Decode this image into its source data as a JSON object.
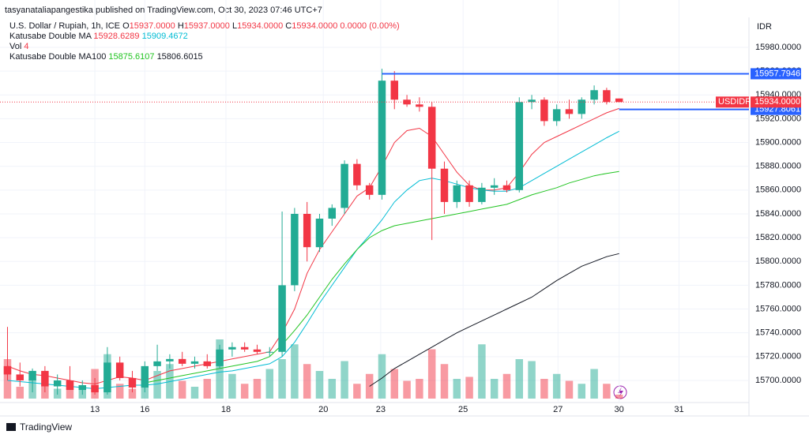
{
  "header": {
    "author_line": "tasyanataliapangestika published on TradingView.com, Oct 30, 2023 07:46 UTC+7",
    "symbol": "U.S. Dollar / Rupiah, 1h, ICE",
    "ohlc": [
      {
        "k": "O",
        "v": "15937.0000"
      },
      {
        "k": "H",
        "v": "15937.0000"
      },
      {
        "k": "L",
        "v": "15934.0000"
      },
      {
        "k": "C",
        "v": "15934.0000"
      }
    ],
    "change": "0.0000 (0.00%)",
    "indicators": [
      {
        "name": "Katusabe Double MA",
        "values": [
          "15928.6289",
          "15909.4672"
        ],
        "colors": [
          "#f23645",
          "#00bcd4"
        ]
      },
      {
        "name": "Vol",
        "values": [
          "4"
        ],
        "colors": [
          "#f23645"
        ]
      },
      {
        "name": "Katusabe Double MA100",
        "values": [
          "15875.6107",
          "15806.6015"
        ],
        "colors": [
          "#22c422",
          "#131722"
        ]
      }
    ]
  },
  "chart_data": {
    "type": "candlestick",
    "currency": "IDR",
    "symbol_tag": "USDIDR",
    "footer": "TradingView",
    "xlim": [
      -0.6,
      59.4
    ],
    "ylim": [
      15681.4,
      16019.8
    ],
    "vlim": [
      0,
      100
    ],
    "xticks": [
      {
        "value": 7,
        "label": "13"
      },
      {
        "value": 11,
        "label": "16"
      },
      {
        "value": 17.5,
        "label": "18"
      },
      {
        "value": 25.3,
        "label": "20"
      },
      {
        "value": 29.9,
        "label": "23"
      },
      {
        "value": 36.5,
        "label": "25"
      },
      {
        "value": 44.1,
        "label": "27"
      },
      {
        "value": 49,
        "label": "30"
      },
      {
        "value": 53.8,
        "label": "31"
      }
    ],
    "yticks": [
      {
        "value": 15700,
        "label": "15700.0000"
      },
      {
        "value": 15720,
        "label": "15720.0000"
      },
      {
        "value": 15740,
        "label": "15740.0000"
      },
      {
        "value": 15760,
        "label": "15760.0000"
      },
      {
        "value": 15780,
        "label": "15780.0000"
      },
      {
        "value": 15800,
        "label": "15800.0000"
      },
      {
        "value": 15820,
        "label": "15820.0000"
      },
      {
        "value": 15840,
        "label": "15840.0000"
      },
      {
        "value": 15860,
        "label": "15860.0000"
      },
      {
        "value": 15880,
        "label": "15880.0000"
      },
      {
        "value": 15900,
        "label": "15900.0000"
      },
      {
        "value": 15920,
        "label": "15920.0000"
      },
      {
        "value": 15940,
        "label": "15940.0000"
      },
      {
        "value": 15960,
        "label": "15960.0000"
      },
      {
        "value": 15980,
        "label": "15980.0000"
      }
    ],
    "up_color": "#22ab94",
    "down_color": "#f23645",
    "open": [
      15712,
      15705,
      15700,
      15708,
      15695,
      15700,
      15692,
      15696,
      15690,
      15715,
      15702,
      15694,
      15712,
      15716,
      15718,
      15714,
      15716,
      15712,
      15726,
      15728,
      15726,
      15724,
      15724,
      15780,
      15840,
      15812,
      15836,
      15845,
      15882,
      15864,
      15856,
      15952,
      15936,
      15932,
      15930,
      15878,
      15850,
      15864,
      15850,
      15862,
      15864,
      15860,
      15934,
      15936,
      15918,
      15928,
      15924,
      15936,
      15944,
      15937
    ],
    "high": [
      15745,
      15715,
      15710,
      15712,
      15705,
      15712,
      15700,
      15702,
      15728,
      15720,
      15708,
      15716,
      15730,
      15722,
      15724,
      15720,
      15722,
      15730,
      15732,
      15732,
      15730,
      15728,
      15842,
      15845,
      15850,
      15840,
      15848,
      15885,
      15886,
      15866,
      15962,
      15960,
      15940,
      15938,
      15934,
      15884,
      15868,
      15868,
      15866,
      15870,
      15868,
      15938,
      15940,
      15938,
      15932,
      15936,
      15938,
      15948,
      15946,
      15937
    ],
    "low": [
      15700,
      15695,
      15690,
      15690,
      15688,
      15692,
      15688,
      15688,
      15688,
      15700,
      15690,
      15690,
      15708,
      15710,
      15712,
      15710,
      15710,
      15710,
      15720,
      15724,
      15722,
      15720,
      15720,
      15775,
      15800,
      15808,
      15830,
      15840,
      15860,
      15852,
      15852,
      15928,
      15930,
      15926,
      15818,
      15840,
      15845,
      15846,
      15848,
      15856,
      15858,
      15858,
      15928,
      15914,
      15914,
      15920,
      15920,
      15932,
      15932,
      15934
    ],
    "close": [
      15705,
      15700,
      15708,
      15695,
      15700,
      15692,
      15696,
      15690,
      15715,
      15702,
      15694,
      15712,
      15716,
      15718,
      15714,
      15716,
      15712,
      15726,
      15728,
      15726,
      15724,
      15724,
      15780,
      15840,
      15812,
      15836,
      15845,
      15882,
      15864,
      15856,
      15952,
      15936,
      15932,
      15930,
      15878,
      15850,
      15864,
      15850,
      15862,
      15864,
      15860,
      15934,
      15936,
      15918,
      15928,
      15924,
      15936,
      15944,
      15934,
      15934
    ],
    "volume": [
      40,
      12,
      20,
      15,
      10,
      18,
      12,
      30,
      45,
      15,
      10,
      20,
      28,
      35,
      18,
      12,
      20,
      60,
      25,
      15,
      20,
      30,
      40,
      55,
      35,
      28,
      20,
      38,
      15,
      25,
      45,
      30,
      18,
      20,
      50,
      35,
      20,
      22,
      55,
      20,
      25,
      40,
      38,
      20,
      25,
      18,
      15,
      30,
      15,
      4
    ],
    "series": [
      {
        "name": "MA fast",
        "color": "#f23645",
        "values": [
          15712,
          15708,
          15705,
          15704,
          15702,
          15700,
          15698,
          15697,
          15700,
          15703,
          15702,
          15700,
          15704,
          15708,
          15710,
          15712,
          15714,
          15716,
          15718,
          15720,
          15722,
          15724,
          15740,
          15760,
          15790,
          15810,
          15825,
          15840,
          15855,
          15862,
          15880,
          15900,
          15910,
          15912,
          15905,
          15890,
          15875,
          15864,
          15860,
          15860,
          15862,
          15875,
          15890,
          15900,
          15905,
          15910,
          15915,
          15920,
          15925,
          15928.6289
        ]
      },
      {
        "name": "MA slow",
        "color": "#00bcd4",
        "values": [
          15700,
          15699,
          15698,
          15697,
          15696,
          15695,
          15694,
          15693,
          15694,
          15695,
          15696,
          15696,
          15697,
          15699,
          15701,
          15703,
          15705,
          15707,
          15708,
          15710,
          15712,
          15714,
          15720,
          15732,
          15748,
          15765,
          15780,
          15795,
          15810,
          15822,
          15835,
          15850,
          15860,
          15868,
          15870,
          15868,
          15865,
          15862,
          15860,
          15859,
          15859,
          15862,
          15868,
          15874,
          15880,
          15886,
          15892,
          15898,
          15904,
          15909.4672
        ]
      },
      {
        "name": "MA100 fast",
        "color": "#22c422",
        "values": [
          null,
          null,
          null,
          null,
          null,
          null,
          null,
          null,
          null,
          null,
          null,
          15698,
          15700,
          15702,
          15704,
          15706,
          15708,
          15710,
          15712,
          15714,
          15716,
          15720,
          15730,
          15742,
          15755,
          15770,
          15785,
          15798,
          15810,
          15820,
          15826,
          15830,
          15832,
          15834,
          15836,
          15838,
          15840,
          15842,
          15844,
          15846,
          15848,
          15852,
          15856,
          15859,
          15862,
          15866,
          15869,
          15872,
          15874,
          15875.6107
        ]
      },
      {
        "name": "MA100 slow",
        "color": "#131722",
        "values": [
          null,
          null,
          null,
          null,
          null,
          null,
          null,
          null,
          null,
          null,
          null,
          null,
          null,
          null,
          null,
          null,
          null,
          null,
          null,
          null,
          null,
          null,
          null,
          null,
          null,
          null,
          null,
          null,
          null,
          15695,
          15702,
          15710,
          15716,
          15722,
          15728,
          15734,
          15740,
          15745,
          15750,
          15755,
          15760,
          15765,
          15770,
          15777,
          15784,
          15790,
          15796,
          15800,
          15804,
          15806.6015
        ]
      }
    ],
    "hlines": [
      {
        "value": 15957.7946,
        "label": "15957.7946",
        "x_start": 30,
        "color": "#2962ff"
      },
      {
        "value": 15927.8061,
        "label": "15927.8061",
        "x_start": 49,
        "color": "#2962ff"
      }
    ],
    "last_price": {
      "value": 15934,
      "label": "15934.0000"
    }
  }
}
